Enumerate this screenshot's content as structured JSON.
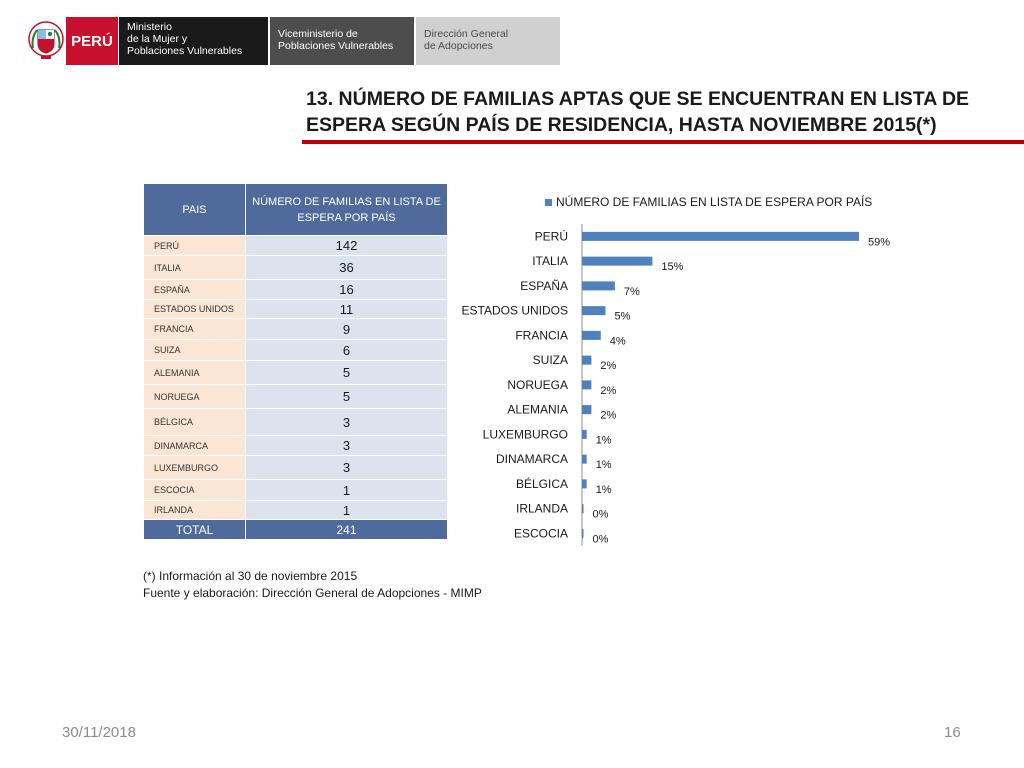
{
  "header": {
    "peru_label": "PERÚ",
    "ministry": [
      "Ministerio",
      "de la Mujer y",
      "Poblaciones Vulnerables"
    ],
    "vice_ministry": [
      "Viceministerio de",
      "Poblaciones Vulnerables"
    ],
    "direction": [
      "Dirección General",
      "de Adopciones"
    ],
    "shield_icon": "peru-coat-of-arms-icon",
    "accent_color": "#c8102e"
  },
  "title": {
    "line1": "13. NÚMERO DE FAMILIAS APTAS QUE SE ENCUENTRAN EN LISTA DE",
    "line2": "ESPERA SEGÚN PAÍS DE RESIDENCIA, HASTA NOVIEMBRE 2015(*)"
  },
  "table": {
    "col1_header": "PAIS",
    "col2_header": "NÚMERO DE FAMILIAS EN LISTA DE ESPERA POR PAÍS",
    "rows": [
      {
        "country": "PERÚ",
        "value": "142"
      },
      {
        "country": "ITALIA",
        "value": "36"
      },
      {
        "country": "ESPAÑA",
        "value": "16"
      },
      {
        "country": "ESTADOS UNIDOS",
        "value": "11"
      },
      {
        "country": "FRANCIA",
        "value": "9"
      },
      {
        "country": "SUIZA",
        "value": "6"
      },
      {
        "country": "ALEMANIA",
        "value": "5"
      },
      {
        "country": "NORUEGA",
        "value": "5"
      },
      {
        "country": "BÉLGICA",
        "value": "3"
      },
      {
        "country": "DINAMARCA",
        "value": "3"
      },
      {
        "country": "LUXEMBURGO",
        "value": "3"
      },
      {
        "country": "ESCOCIA",
        "value": "1"
      },
      {
        "country": "IRLANDA",
        "value": "1"
      }
    ],
    "total_label": "TOTAL",
    "total_value": "241"
  },
  "chart_data": {
    "type": "bar",
    "orientation": "horizontal",
    "legend": "NÚMERO DE FAMILIAS EN LISTA DE ESPERA POR PAÍS",
    "legend_position": "top",
    "categories": [
      "PERÚ",
      "ITALIA",
      "ESPAÑA",
      "ESTADOS UNIDOS",
      "FRANCIA",
      "SUIZA",
      "NORUEGA",
      "ALEMANIA",
      "LUXEMBURGO",
      "DINAMARCA",
      "BÉLGICA",
      "IRLANDA",
      "ESCOCIA"
    ],
    "values": [
      59,
      15,
      7,
      5,
      4,
      2,
      2,
      2,
      1,
      1,
      1,
      0,
      0
    ],
    "labels": [
      "59%",
      "15%",
      "7%",
      "5%",
      "4%",
      "2%",
      "2%",
      "2%",
      "1%",
      "1%",
      "1%",
      "0%",
      "0%"
    ],
    "unit": "%",
    "bar_color": "#4f81bd",
    "grid": false
  },
  "notes": {
    "line1": "(*) Información al 30 de noviembre 2015",
    "line2": "Fuente y elaboración: Dirección General de Adopciones - MIMP"
  },
  "footer": {
    "date": "30/11/2018",
    "page": "16"
  }
}
